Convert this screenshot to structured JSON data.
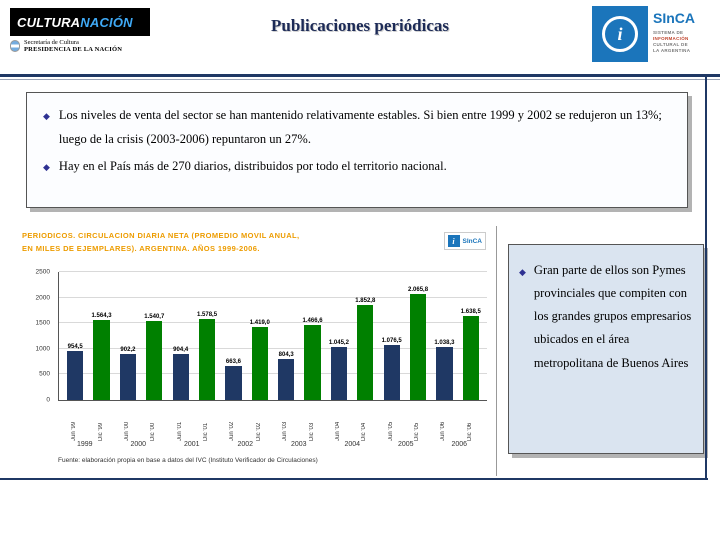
{
  "header": {
    "title": "Publicaciones periódicas",
    "logo_left": {
      "word1": "CULTURA",
      "word2": "NACIÓN",
      "line1": "Secretaría de Cultura",
      "line2": "PRESIDENCIA DE LA NACIÓN"
    },
    "logo_right": {
      "name": "SInCA",
      "subtitle_lines": [
        "SISTEMA DE",
        "INFORMACIÓN",
        "CULTURAL DE",
        "LA ARGENTINA"
      ]
    }
  },
  "bullet_glyph": "◆",
  "bullets": [
    "Los niveles de venta del sector se han mantenido relativamente estables. Si bien entre 1999 y 2002 se redujeron un 13%; luego de la crisis (2003-2006) repuntaron un 27%.",
    "Hay en el País más de 270 diarios, distribuidos por todo el territorio nacional."
  ],
  "side_note": "Gran parte de ellos son Pymes provinciales que compiten con los grandes grupos empresarios ubicados en el área metropolitana de Buenos Aires",
  "chart_data": {
    "type": "bar",
    "title_lines": [
      "PERIODICOS. CIRCULACION DIARIA NETA (PROMEDIO MOVIL ANUAL,",
      "EN MILES DE EJEMPLARES). ARGENTINA. AÑOS 1999-2006."
    ],
    "x": [
      "Jun '99",
      "Dic '99",
      "Jun '00",
      "Dic '00",
      "Jun '01",
      "Dic '01",
      "Jun '02",
      "Dic '02",
      "Jun '03",
      "Dic '03",
      "Jun '04",
      "Dic '04",
      "Jun '05",
      "Dic '05",
      "Jun '06",
      "Dic '06"
    ],
    "values": [
      954.5,
      1564.3,
      902.2,
      1540.7,
      904.4,
      1578.5,
      663.6,
      1419.0,
      804.3,
      1466.6,
      1045.2,
      1852.8,
      1076.5,
      2065.8,
      1038.3,
      1638.5
    ],
    "labels": [
      "954,5",
      "1.564,3",
      "902,2",
      "1.540,7",
      "904,4",
      "1.578,5",
      "663,6",
      "1.419,0",
      "804,3",
      "1.466,6",
      "1.045,2",
      "1.852,8",
      "1.076,5",
      "2.065,8",
      "1.038,3",
      "1.638,5"
    ],
    "years": [
      "1999",
      "2000",
      "2001",
      "2002",
      "2003",
      "2004",
      "2005",
      "2006"
    ],
    "ylim": [
      0,
      2500
    ],
    "yticks": [
      0,
      500,
      1000,
      1500,
      2000,
      2500
    ],
    "ytick_labels": [
      "0",
      "500",
      "1000",
      "1500",
      "2000",
      "2500"
    ],
    "bar_colors": [
      "#1F3864",
      "#008000"
    ],
    "grid": true,
    "legend": "none",
    "source": "Fuente: elaboración propia en base a datos del IVC (Instituto Verificador de Circulaciones)"
  },
  "colors": {
    "navy": "#1F3864",
    "green": "#008000",
    "orange": "#ED9C00",
    "boxblue": "#dae4f0",
    "sincablue": "#1B75BB",
    "shadow": "#b3b3b3",
    "title": "#1c2a56"
  }
}
